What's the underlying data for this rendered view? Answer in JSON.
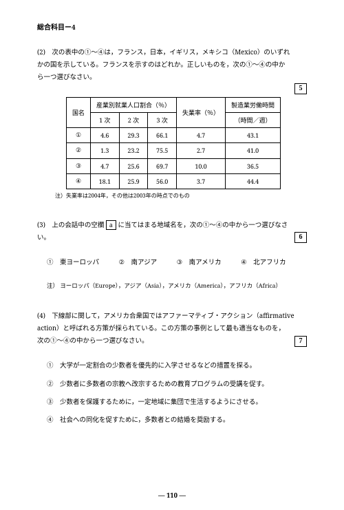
{
  "header": "総合科目ー4",
  "q2": {
    "num": "(2)",
    "text_l1": "次の表中の①〜④は，フランス，日本，イギリス，メキシコ（Mexico）のいずれ",
    "text_l2": "かの国を示している。フランスを示すのはどれか。正しいものを，次の①〜④の中か",
    "text_l3": "ら一つ選びなさい。",
    "answer_box": "5",
    "table": {
      "colhead_country": "国名",
      "colhead_group": "産業別就業人口割合（％）",
      "colhead_c1": "1 次",
      "colhead_c2": "2 次",
      "colhead_c3": "3 次",
      "colhead_unemp": "失業率（％）",
      "colhead_hours_l1": "製造業労働時間",
      "colhead_hours_l2": "（時間／週）",
      "rows": [
        {
          "label": "①",
          "c1": "4.6",
          "c2": "29.3",
          "c3": "66.1",
          "u": "4.7",
          "h": "43.1"
        },
        {
          "label": "②",
          "c1": "1.3",
          "c2": "23.2",
          "c3": "75.5",
          "u": "2.7",
          "h": "41.0"
        },
        {
          "label": "③",
          "c1": "4.7",
          "c2": "25.6",
          "c3": "69.7",
          "u": "10.0",
          "h": "36.5"
        },
        {
          "label": "④",
          "c1": "18.1",
          "c2": "25.9",
          "c3": "56.0",
          "u": "3.7",
          "h": "44.4"
        }
      ]
    },
    "table_note_label": "注）",
    "table_note": "失業率は2004年，その他は2003年の時点でのもの"
  },
  "q3": {
    "num": "(3)",
    "text_l1a": "上の会話中の空欄",
    "blank_label": "a",
    "text_l1b": "に当てはまる地域名を，次の①〜④の中から一つ選びなさ",
    "text_l2": "い。",
    "answer_box": "6",
    "choices": {
      "c1": "①　東ヨーロッパ",
      "c2": "②　南アジア",
      "c3": "③　南アメリカ",
      "c4": "④　北アフリカ"
    },
    "note_label": "注）",
    "note": "ヨーロッパ（Europe），アジア（Asia），アメリカ（America），アフリカ（Africa）"
  },
  "q4": {
    "num": "(4)",
    "text_l1": "下線部に関して，アメリカ合衆国ではアファーマティブ・アクション（affirmative",
    "text_l2": "action）と呼ばれる方策が採られている。この方策の事例として最も適当なものを，",
    "text_l3": "次の①〜④の中から一つ選びなさい。",
    "answer_box": "7",
    "choices": {
      "c1": "①　大学が一定割合の少数者を優先的に入学させるなどの措置を探る。",
      "c2": "②　少数者に多数者の宗教へ改宗するための教育プログラムの受講を促す。",
      "c3": "③　少数者を保護するために，一定地域に集団で生活するようにさせる。",
      "c4": "④　社会への同化を促すために，多数者との結婚を奨励する。"
    }
  },
  "page_number": "— 110 —"
}
